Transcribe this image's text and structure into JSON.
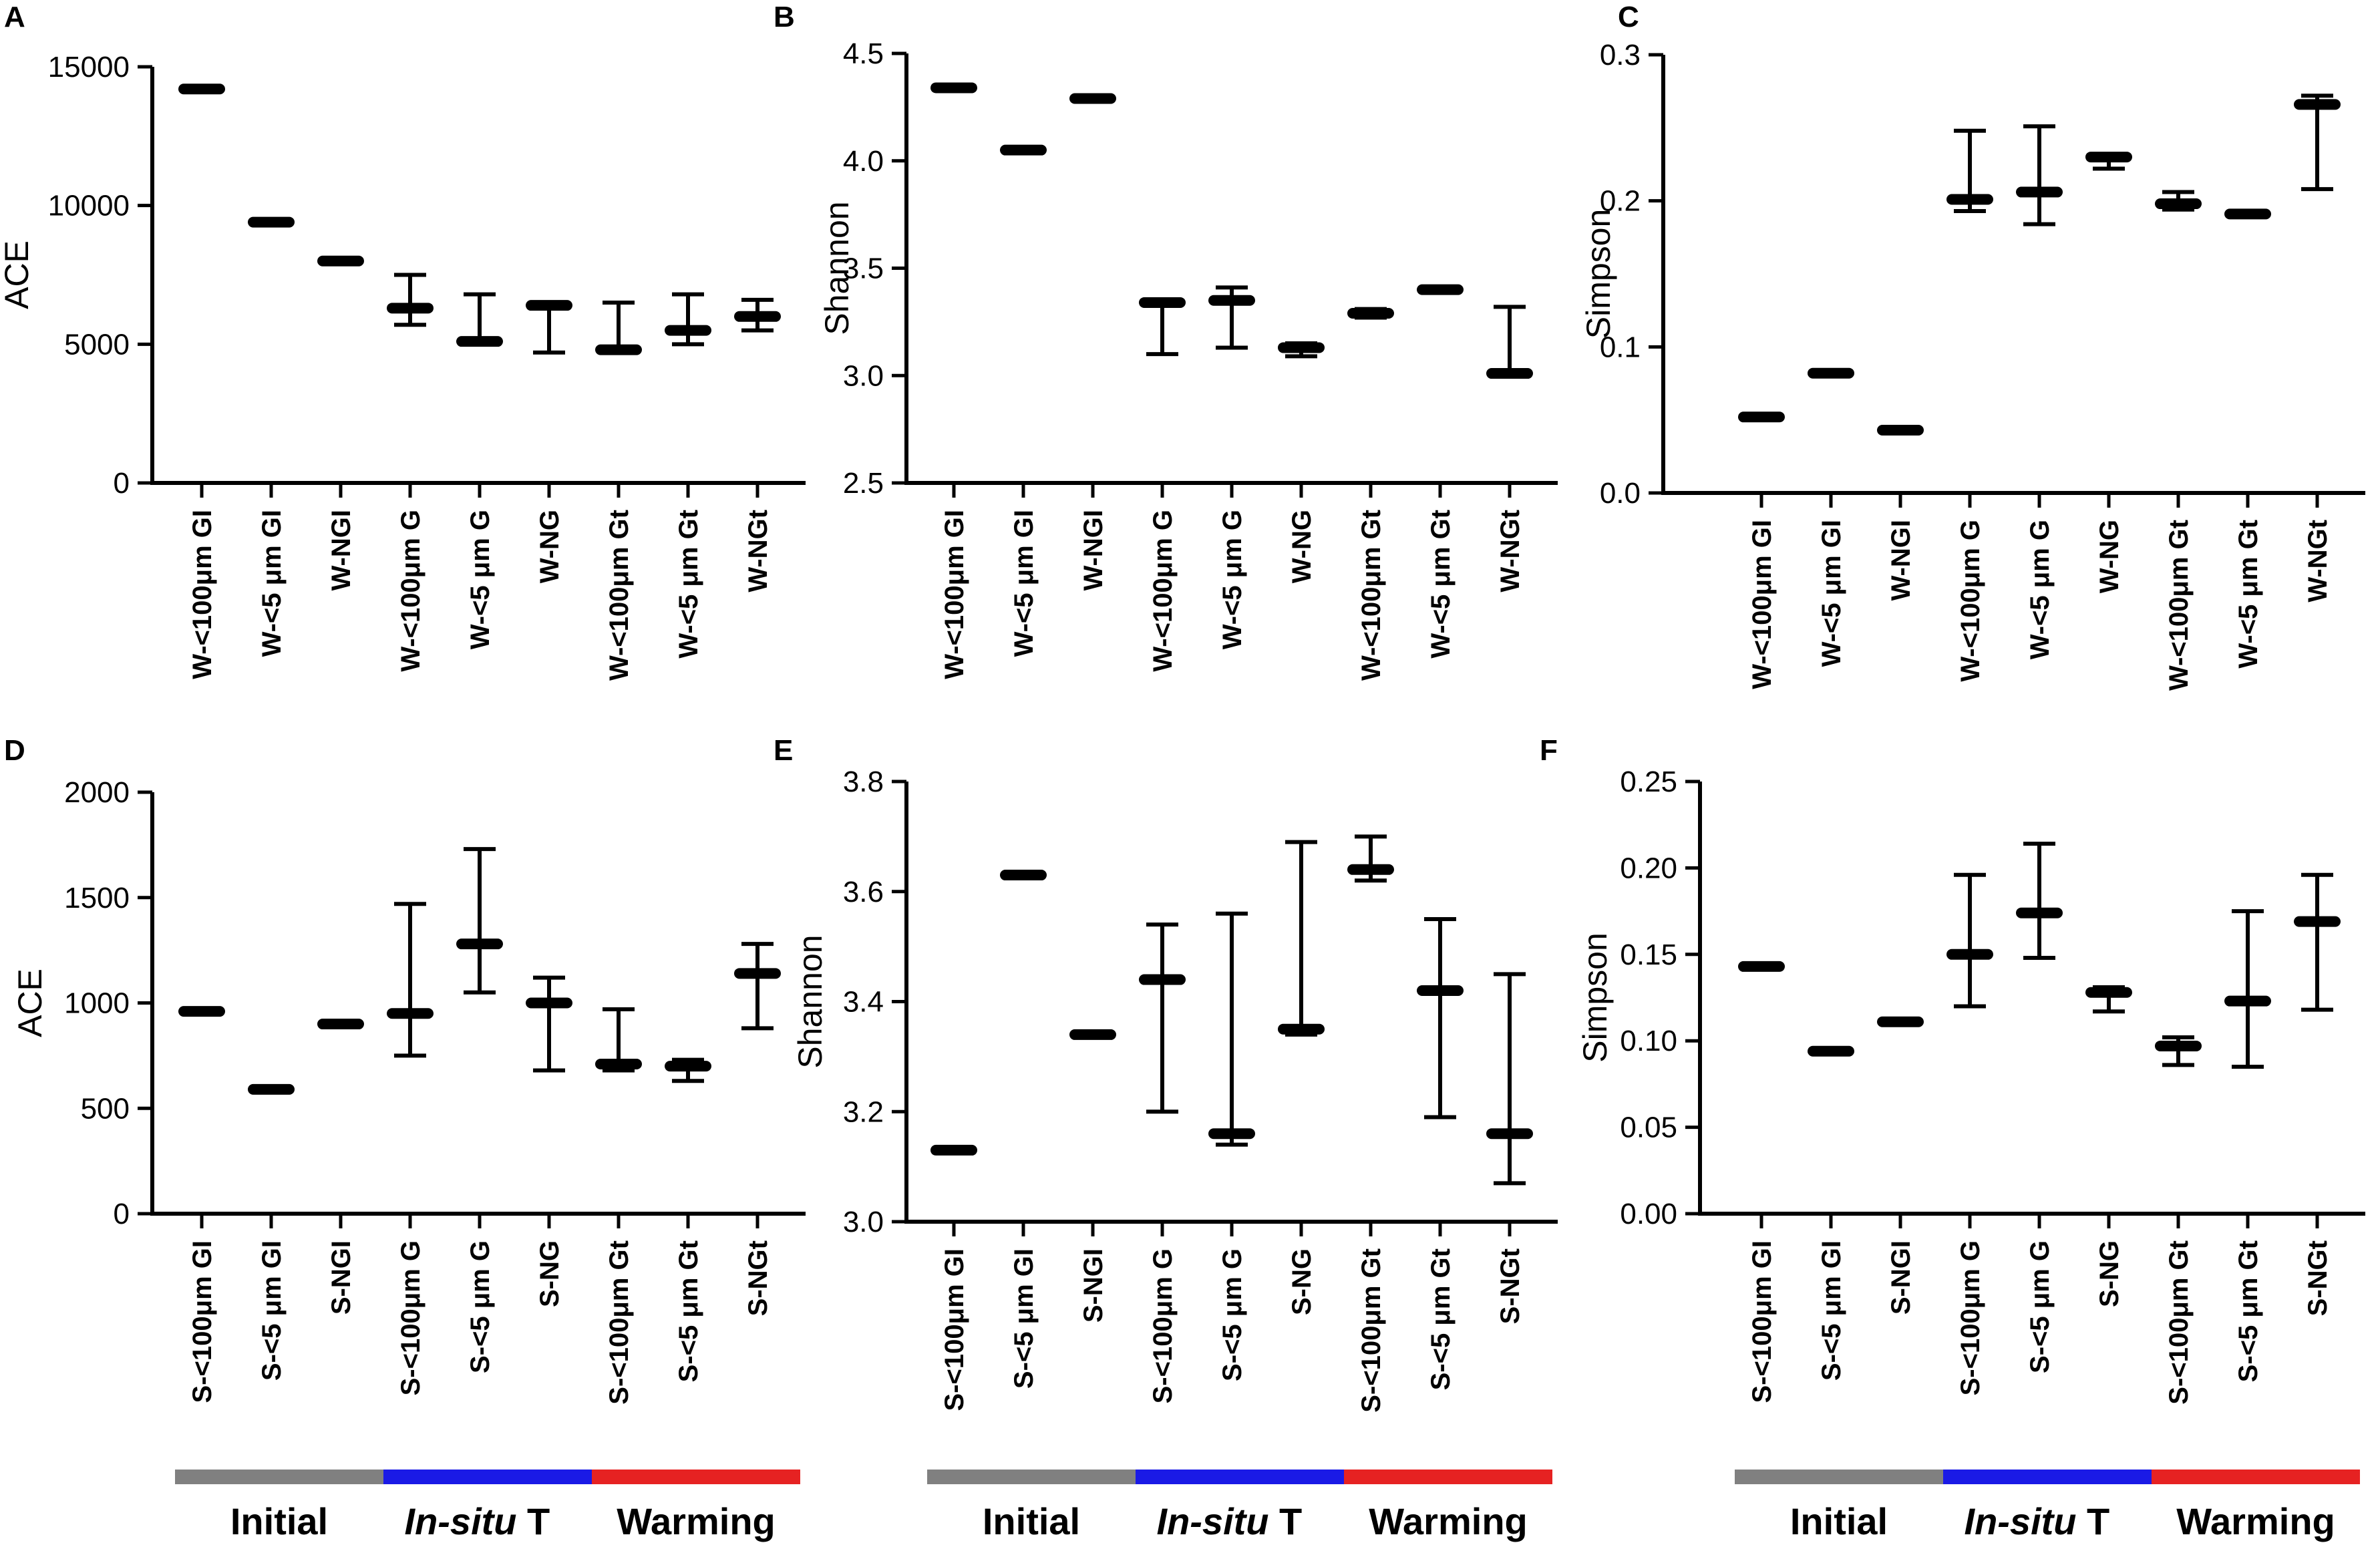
{
  "colors": {
    "initial": "#808080",
    "insitu": "#1a1ae6",
    "warming": "#e62222",
    "ink": "#000000"
  },
  "groups": {
    "initial": "Initial",
    "insitu_italic": "In-situ",
    "insitu_suffix": " T",
    "warming": "Warming"
  },
  "chart_data": [
    {
      "panel": "A",
      "type": "errorbar",
      "ylabel": "ACE",
      "ylim": [
        0,
        15000
      ],
      "yticks": [
        0,
        5000,
        10000,
        15000
      ],
      "yticklabels": [
        "0",
        "5000",
        "10000",
        "15000"
      ],
      "categories": [
        "W-<100μm GI",
        "W-<5 μm GI",
        "W-NGI",
        "W-<100μm G",
        "W-<5 μm G",
        "W-NG",
        "W-<100μm Gt",
        "W-<5 μm Gt",
        "W-NGt"
      ],
      "values": [
        14200,
        9400,
        8000,
        6300,
        5100,
        6400,
        4800,
        5500,
        6000
      ],
      "err_low": [
        null,
        null,
        null,
        5700,
        5000,
        4700,
        4700,
        5000,
        5500
      ],
      "err_high": [
        null,
        null,
        null,
        7500,
        6800,
        6500,
        6500,
        6800,
        6600
      ],
      "group_bar": false
    },
    {
      "panel": "B",
      "type": "errorbar",
      "ylabel": "Shannon",
      "ylim": [
        2.5,
        4.5
      ],
      "yticks": [
        2.5,
        3.0,
        3.5,
        4.0,
        4.5
      ],
      "yticklabels": [
        "2.5",
        "3.0",
        "3.5",
        "4.0",
        "4.5"
      ],
      "categories": [
        "W-<100μm GI",
        "W-<5 μm GI",
        "W-NGI",
        "W-<100μm G",
        "W-<5 μm G",
        "W-NG",
        "W-<100μm Gt",
        "W-<5 μm Gt",
        "W-NGt"
      ],
      "values": [
        4.34,
        4.05,
        4.29,
        3.34,
        3.35,
        3.13,
        3.29,
        3.4,
        3.01
      ],
      "err_low": [
        null,
        null,
        null,
        3.1,
        3.13,
        3.09,
        3.27,
        null,
        3.0
      ],
      "err_high": [
        null,
        null,
        null,
        3.35,
        3.41,
        3.15,
        3.31,
        null,
        3.32
      ],
      "group_bar": false
    },
    {
      "panel": "C",
      "type": "errorbar",
      "ylabel": "Simpson",
      "ylim": [
        0,
        0.3
      ],
      "yticks": [
        0,
        0.1,
        0.2,
        0.3
      ],
      "yticklabels": [
        "0.0",
        "0.1",
        "0.2",
        "0.3"
      ],
      "categories": [
        "W-<100μm GI",
        "W-<5 μm GI",
        "W-NGI",
        "W-<100μm G",
        "W-<5 μm G",
        "W-NG",
        "W-<100μm Gt",
        "W-<5 μm Gt",
        "W-NGt"
      ],
      "values": [
        0.052,
        0.082,
        0.043,
        0.201,
        0.206,
        0.23,
        0.198,
        0.191,
        0.266
      ],
      "err_low": [
        null,
        null,
        null,
        0.193,
        0.184,
        0.222,
        0.194,
        0.19,
        0.208
      ],
      "err_high": [
        null,
        null,
        null,
        0.248,
        0.251,
        0.232,
        0.206,
        0.192,
        0.272
      ],
      "group_bar": false
    },
    {
      "panel": "D",
      "type": "errorbar",
      "ylabel": "ACE",
      "ylim": [
        0,
        2000
      ],
      "yticks": [
        0,
        500,
        1000,
        1500,
        2000
      ],
      "yticklabels": [
        "0",
        "500",
        "1000",
        "1500",
        "2000"
      ],
      "categories": [
        "S-<100μm GI",
        "S-<5 μm GI",
        "S-NGI",
        "S-<100μm G",
        "S-<5 μm G",
        "S-NG",
        "S-<100μm Gt",
        "S-<5 μm Gt",
        "S-NGt"
      ],
      "values": [
        960,
        590,
        900,
        950,
        1280,
        1000,
        710,
        700,
        1140
      ],
      "err_low": [
        null,
        null,
        null,
        750,
        1050,
        680,
        680,
        630,
        880
      ],
      "err_high": [
        null,
        null,
        null,
        1470,
        1730,
        1120,
        970,
        730,
        1280
      ],
      "group_bar": true
    },
    {
      "panel": "E",
      "type": "errorbar",
      "ylabel": "Shannon",
      "ylim": [
        3.0,
        3.8
      ],
      "yticks": [
        3.0,
        3.2,
        3.4,
        3.6,
        3.8
      ],
      "yticklabels": [
        "3.0",
        "3.2",
        "3.4",
        "3.6",
        "3.8"
      ],
      "categories": [
        "S-<100μm GI",
        "S-<5 μm GI",
        "S-NGI",
        "S-<100μm G",
        "S-<5 μm G",
        "S-NG",
        "S-<100μm Gt",
        "S-<5 μm Gt",
        "S-NGt"
      ],
      "values": [
        3.13,
        3.63,
        3.34,
        3.44,
        3.16,
        3.35,
        3.64,
        3.42,
        3.16
      ],
      "err_low": [
        null,
        null,
        null,
        3.2,
        3.14,
        3.34,
        3.62,
        3.19,
        3.07
      ],
      "err_high": [
        null,
        null,
        null,
        3.54,
        3.56,
        3.69,
        3.7,
        3.55,
        3.45
      ],
      "group_bar": true
    },
    {
      "panel": "F",
      "type": "errorbar",
      "ylabel": "Simpson",
      "ylim": [
        0,
        0.25
      ],
      "yticks": [
        0,
        0.05,
        0.1,
        0.15,
        0.2,
        0.25
      ],
      "yticklabels": [
        "0.00",
        "0.05",
        "0.10",
        "0.15",
        "0.20",
        "0.25"
      ],
      "categories": [
        "S-<100μm GI",
        "S-<5 μm GI",
        "S-NGI",
        "S-<100μm G",
        "S-<5 μm G",
        "S-NG",
        "S-<100μm Gt",
        "S-<5 μm Gt",
        "S-NGt"
      ],
      "values": [
        0.143,
        0.094,
        0.111,
        0.15,
        0.174,
        0.128,
        0.097,
        0.123,
        0.169
      ],
      "err_low": [
        null,
        null,
        null,
        0.12,
        0.148,
        0.117,
        0.086,
        0.085,
        0.118
      ],
      "err_high": [
        null,
        null,
        null,
        0.196,
        0.214,
        0.131,
        0.102,
        0.175,
        0.196
      ],
      "group_bar": true
    }
  ]
}
